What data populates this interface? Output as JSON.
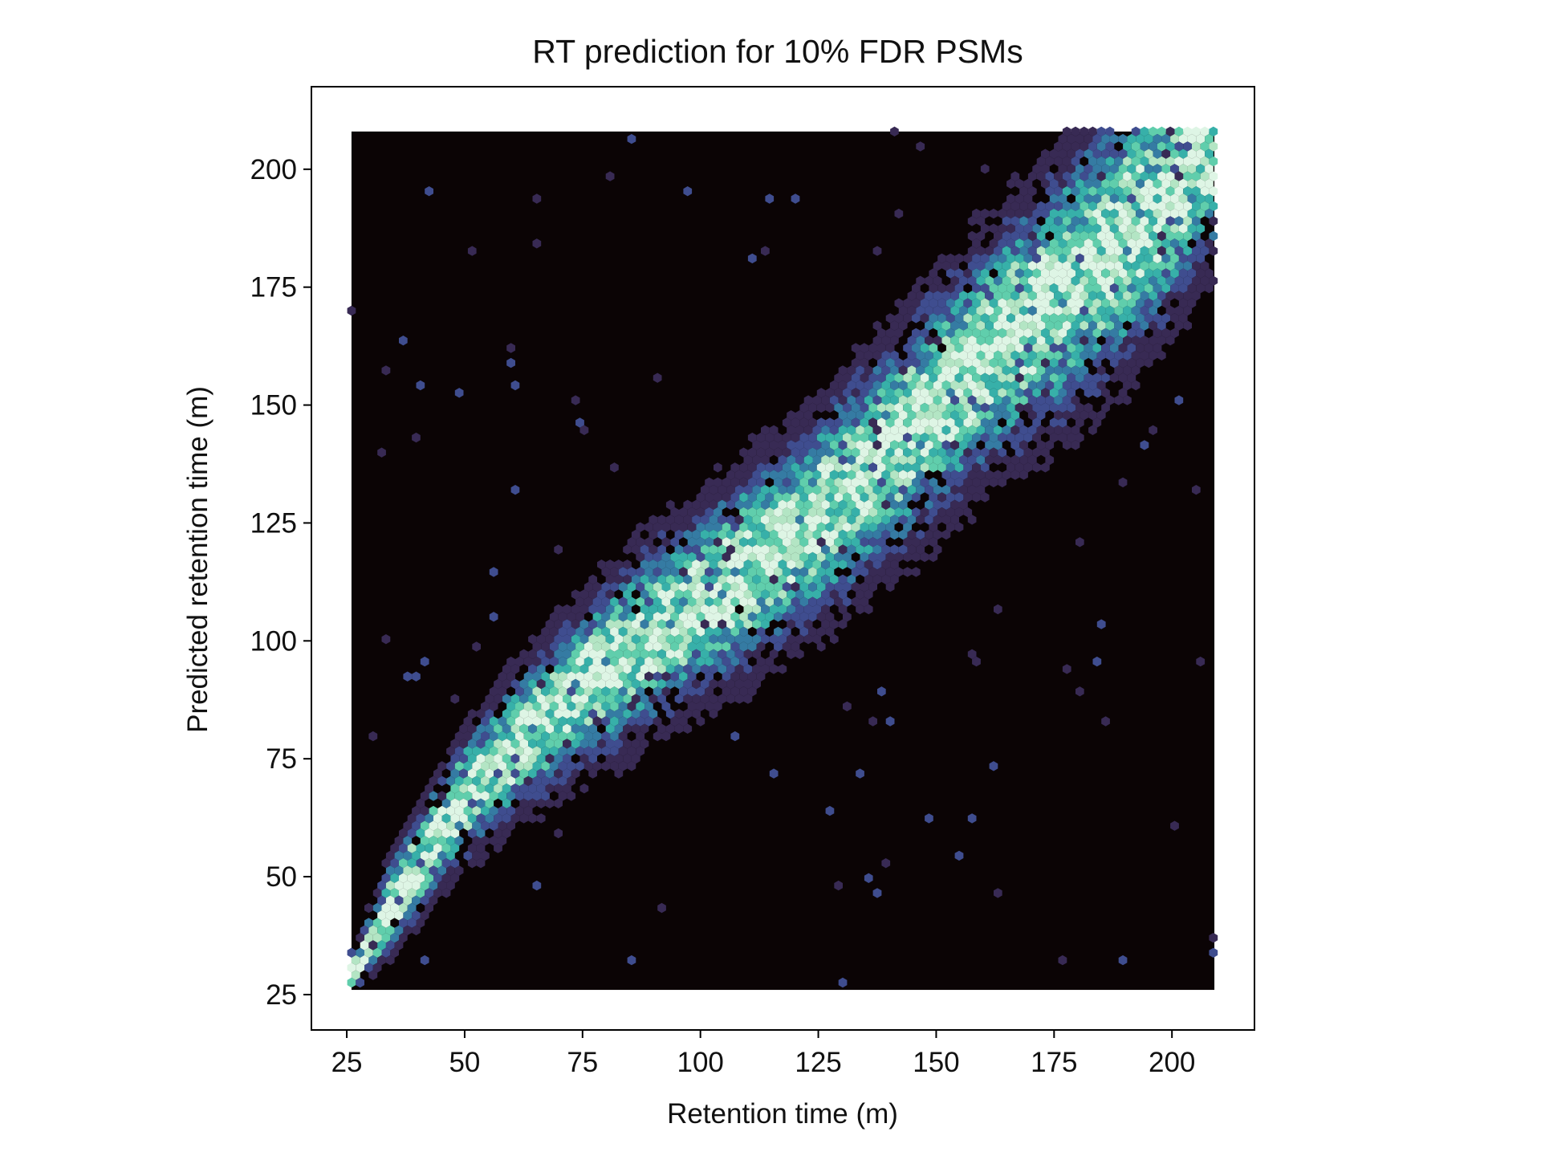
{
  "chart_data": {
    "type": "heatmap",
    "subtype": "hexbin",
    "title": "RT prediction for 10% FDR PSMs",
    "xlabel": "Retention time (m)",
    "ylabel": "Predicted retention time (m)",
    "xlim": [
      17.5,
      217.5
    ],
    "ylim": [
      17.5,
      217.5
    ],
    "data_extent": {
      "x": [
        26,
        209
      ],
      "y": [
        26,
        208
      ]
    },
    "xticks": [
      25,
      50,
      75,
      100,
      125,
      150,
      175,
      200
    ],
    "yticks": [
      25,
      50,
      75,
      100,
      125,
      150,
      175,
      200
    ],
    "xtick_labels": [
      "25",
      "50",
      "75",
      "100",
      "125",
      "150",
      "175",
      "200"
    ],
    "ytick_labels": [
      "25",
      "50",
      "75",
      "100",
      "125",
      "150",
      "175",
      "200"
    ],
    "grid": false,
    "legend": "none",
    "colormap": [
      "#0b0405",
      "#382a54",
      "#3f4d8f",
      "#357ba3",
      "#37b0a9",
      "#60ceac",
      "#b3e5c4",
      "#def5e5"
    ],
    "background_color": "#0b0405",
    "density_trend": {
      "x": [
        27,
        30,
        35,
        40,
        45,
        50,
        60,
        70,
        80,
        90,
        100,
        110,
        120,
        130,
        140,
        150,
        160,
        170,
        180,
        190,
        200,
        207
      ],
      "y": [
        30,
        36,
        45,
        52,
        60,
        67,
        77,
        86,
        94,
        101,
        108,
        115,
        122,
        131,
        140,
        150,
        160,
        168,
        177,
        186,
        196,
        205
      ],
      "spread": [
        3,
        4,
        6,
        7,
        7,
        8,
        9,
        10,
        11,
        12,
        12,
        13,
        13,
        14,
        14,
        15,
        15,
        16,
        17,
        17,
        16,
        15
      ]
    }
  }
}
